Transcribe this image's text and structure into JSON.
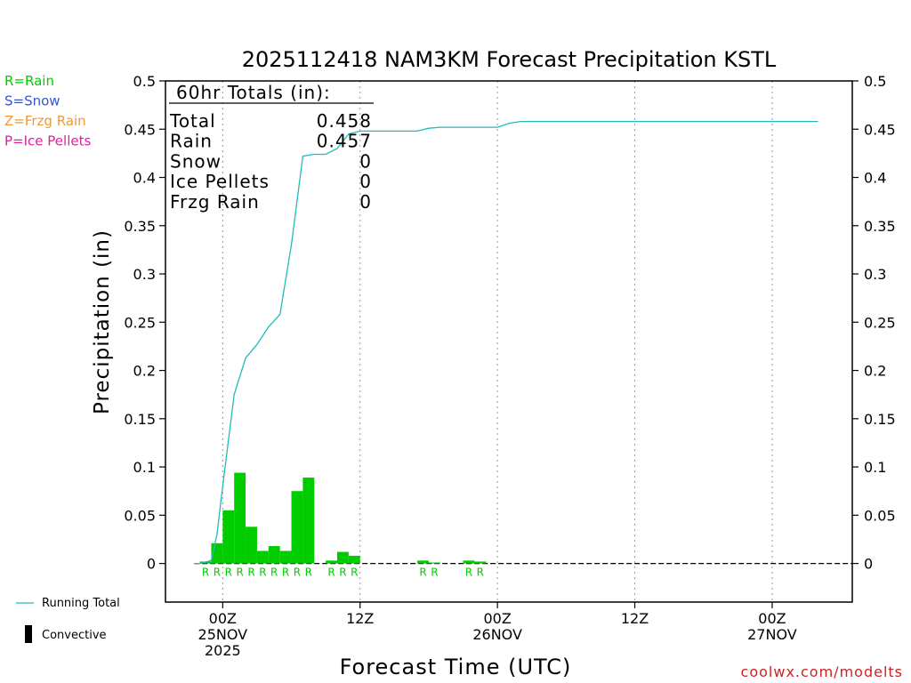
{
  "chart_data": {
    "type": "bar",
    "title": "2025112418 NAM3KM Forecast Precipitation KSTL",
    "xlabel": "Forecast Time (UTC)",
    "ylabel": "Precipitation (in)",
    "ylim": [
      -0.04,
      0.5
    ],
    "xlim": [
      -5,
      55
    ],
    "x_units": "hours after 00Z 25NOV 2025",
    "yticks": [
      {
        "value": 0,
        "label": "0"
      },
      {
        "value": 0.05,
        "label": "0.05"
      },
      {
        "value": 0.1,
        "label": "0.1"
      },
      {
        "value": 0.15,
        "label": "0.15"
      },
      {
        "value": 0.2,
        "label": "0.2"
      },
      {
        "value": 0.25,
        "label": "0.25"
      },
      {
        "value": 0.3,
        "label": "0.3"
      },
      {
        "value": 0.35,
        "label": "0.35"
      },
      {
        "value": 0.4,
        "label": "0.4"
      },
      {
        "value": 0.45,
        "label": "0.45"
      },
      {
        "value": 0.5,
        "label": "0.5"
      }
    ],
    "xticks": [
      {
        "hour": 0,
        "line1": "00Z",
        "line2": "25NOV",
        "line3": "2025"
      },
      {
        "hour": 12,
        "line1": "12Z",
        "line2": "",
        "line3": ""
      },
      {
        "hour": 24,
        "line1": "00Z",
        "line2": "26NOV",
        "line3": ""
      },
      {
        "hour": 36,
        "line1": "12Z",
        "line2": "",
        "line3": ""
      },
      {
        "hour": 48,
        "line1": "00Z",
        "line2": "27NOV",
        "line3": ""
      }
    ],
    "gridlines": "vertical dotted at each x tick",
    "bar_color": "#00cc00",
    "running_total_color": "#22bbbb",
    "convective_color": "#000000",
    "bars": [
      {
        "start": -2,
        "end": -1,
        "value": 0.002,
        "type": "R"
      },
      {
        "start": -1,
        "end": 0,
        "value": 0.021,
        "type": "R"
      },
      {
        "start": 0,
        "end": 1,
        "value": 0.055,
        "type": "R"
      },
      {
        "start": 1,
        "end": 2,
        "value": 0.094,
        "type": "R"
      },
      {
        "start": 2,
        "end": 3,
        "value": 0.038,
        "type": "R"
      },
      {
        "start": 3,
        "end": 4,
        "value": 0.013,
        "type": "R"
      },
      {
        "start": 4,
        "end": 5,
        "value": 0.018,
        "type": "R"
      },
      {
        "start": 5,
        "end": 6,
        "value": 0.013,
        "type": "R"
      },
      {
        "start": 6,
        "end": 7,
        "value": 0.075,
        "type": "R"
      },
      {
        "start": 7,
        "end": 8,
        "value": 0.089,
        "type": "R"
      },
      {
        "start": 9,
        "end": 10,
        "value": 0.003,
        "type": "R"
      },
      {
        "start": 10,
        "end": 11,
        "value": 0.012,
        "type": "R"
      },
      {
        "start": 11,
        "end": 12,
        "value": 0.008,
        "type": "R"
      },
      {
        "start": 17,
        "end": 18,
        "value": 0.003,
        "type": "R"
      },
      {
        "start": 18,
        "end": 19,
        "value": 0.001,
        "type": "R"
      },
      {
        "start": 21,
        "end": 22,
        "value": 0.003,
        "type": "R"
      },
      {
        "start": 22,
        "end": 23,
        "value": 0.002,
        "type": "R"
      }
    ],
    "series": [
      {
        "name": "Running Total",
        "x": [
          -2.5,
          -2,
          -1,
          -0.5,
          0,
          1,
          2,
          3,
          4,
          5,
          6,
          7,
          8,
          9,
          10,
          11,
          12,
          13,
          14,
          15,
          16,
          17,
          18,
          19,
          20,
          21,
          22,
          23,
          24,
          25,
          26,
          27,
          30,
          36,
          42,
          48,
          52
        ],
        "values": [
          0,
          0,
          0.003,
          0.03,
          0.08,
          0.175,
          0.213,
          0.227,
          0.245,
          0.258,
          0.33,
          0.422,
          0.424,
          0.424,
          0.43,
          0.445,
          0.448,
          0.448,
          0.448,
          0.448,
          0.448,
          0.448,
          0.451,
          0.452,
          0.452,
          0.452,
          0.452,
          0.452,
          0.452,
          0.456,
          0.458,
          0.458,
          0.458,
          0.458,
          0.458,
          0.458,
          0.458
        ]
      }
    ],
    "totals_box": {
      "heading": "60hr Totals (in):",
      "rows": [
        {
          "label": "Total",
          "value": "0.458"
        },
        {
          "label": "Rain",
          "value": "0.457"
        },
        {
          "label": "Snow",
          "value": "0"
        },
        {
          "label": "Ice Pellets",
          "value": "0"
        },
        {
          "label": "Frzg Rain",
          "value": "0"
        }
      ]
    },
    "type_legend": [
      {
        "text": "R=Rain",
        "color": "#00cc00"
      },
      {
        "text": "S=Snow",
        "color": "#3355dd"
      },
      {
        "text": "Z=Frzg Rain",
        "color": "#ee9933"
      },
      {
        "text": "P=Ice Pellets",
        "color": "#dd2299"
      }
    ],
    "line_legend": [
      {
        "text": "Running Total",
        "kind": "line",
        "color": "#22bbbb"
      },
      {
        "text": "Convective",
        "kind": "box",
        "color": "#000000"
      }
    ]
  },
  "credit": "coolwx.com/modelts"
}
